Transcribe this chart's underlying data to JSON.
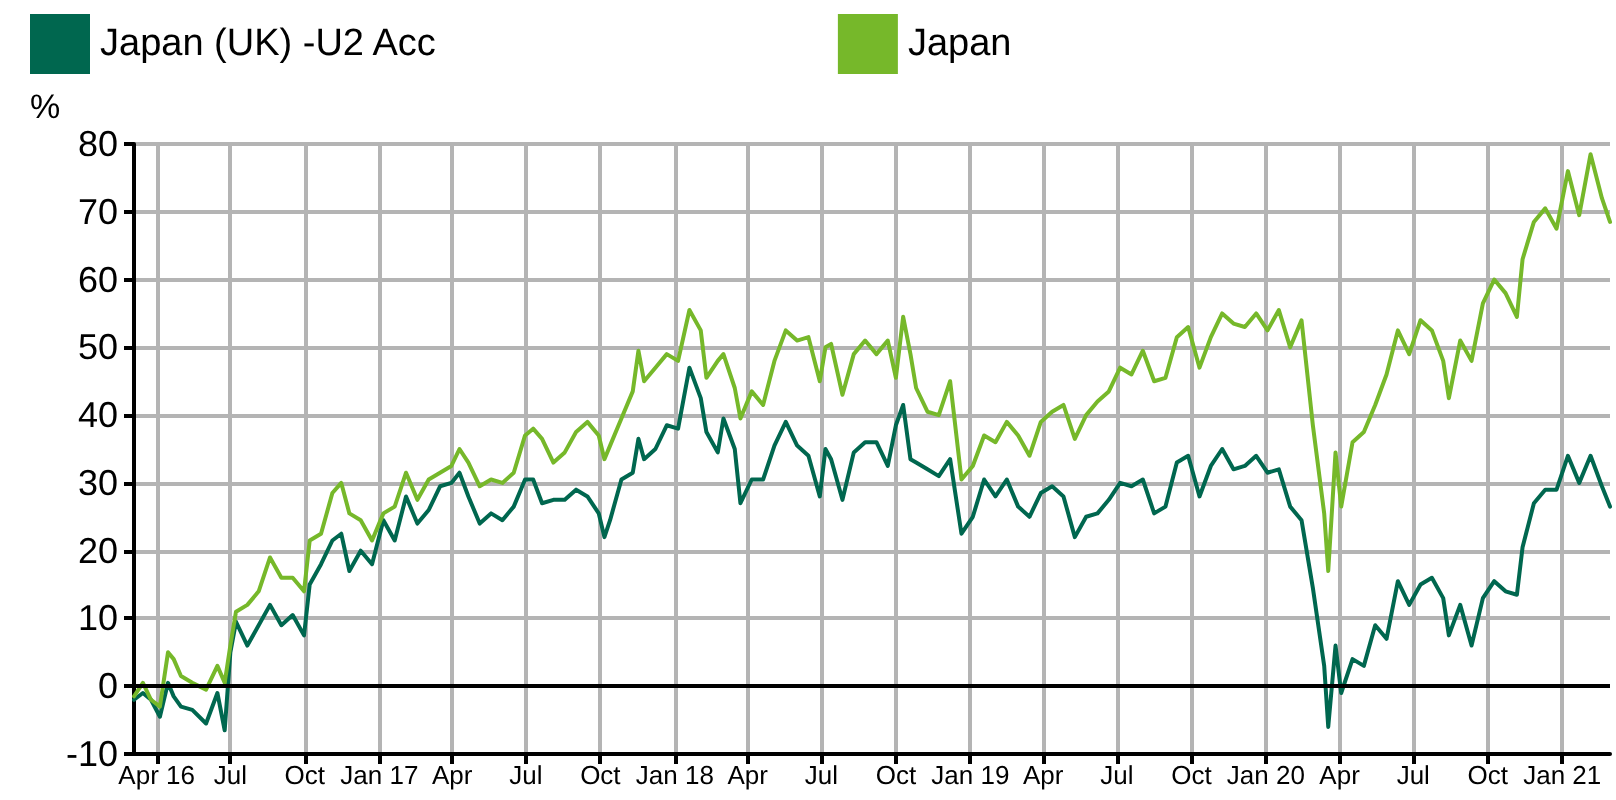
{
  "chart_data": {
    "type": "line",
    "ylabel": "%",
    "legend": "top",
    "grid": true,
    "marker": "none",
    "line_style": "solid",
    "ylim": [
      -10,
      80
    ],
    "yticks": [
      -10,
      0,
      10,
      20,
      30,
      40,
      50,
      60,
      70,
      80
    ],
    "xlim": [
      "2016-03-04",
      "2021-03-01"
    ],
    "xticks": [
      {
        "value": "2016-04-01",
        "label": "Apr 16"
      },
      {
        "value": "2016-07-01",
        "label": "Jul"
      },
      {
        "value": "2016-10-01",
        "label": "Oct"
      },
      {
        "value": "2017-01-01",
        "label": "Jan 17"
      },
      {
        "value": "2017-04-01",
        "label": "Apr"
      },
      {
        "value": "2017-07-01",
        "label": "Jul"
      },
      {
        "value": "2017-10-01",
        "label": "Oct"
      },
      {
        "value": "2018-01-01",
        "label": "Jan 18"
      },
      {
        "value": "2018-04-01",
        "label": "Apr"
      },
      {
        "value": "2018-07-01",
        "label": "Jul"
      },
      {
        "value": "2018-10-01",
        "label": "Oct"
      },
      {
        "value": "2019-01-01",
        "label": "Jan 19"
      },
      {
        "value": "2019-04-01",
        "label": "Apr"
      },
      {
        "value": "2019-07-01",
        "label": "Jul"
      },
      {
        "value": "2019-10-01",
        "label": "Oct"
      },
      {
        "value": "2020-01-01",
        "label": "Jan 20"
      },
      {
        "value": "2020-04-01",
        "label": "Apr"
      },
      {
        "value": "2020-07-01",
        "label": "Jul"
      },
      {
        "value": "2020-10-01",
        "label": "Oct"
      },
      {
        "value": "2021-01-01",
        "label": "Jan 21"
      }
    ],
    "ref_lines": [
      {
        "axis": "y",
        "value": 0,
        "color": "#000000"
      }
    ],
    "x": [
      "2016-03-04",
      "2016-03-15",
      "2016-03-25",
      "2016-04-05",
      "2016-04-15",
      "2016-04-22",
      "2016-05-01",
      "2016-05-15",
      "2016-06-01",
      "2016-06-15",
      "2016-06-24",
      "2016-07-01",
      "2016-07-08",
      "2016-07-22",
      "2016-08-05",
      "2016-08-19",
      "2016-09-02",
      "2016-09-16",
      "2016-09-30",
      "2016-10-07",
      "2016-10-21",
      "2016-11-04",
      "2016-11-15",
      "2016-11-25",
      "2016-12-09",
      "2016-12-23",
      "2017-01-06",
      "2017-01-20",
      "2017-02-03",
      "2017-02-17",
      "2017-03-03",
      "2017-03-17",
      "2017-03-31",
      "2017-04-10",
      "2017-04-21",
      "2017-05-05",
      "2017-05-19",
      "2017-06-02",
      "2017-06-16",
      "2017-06-30",
      "2017-07-10",
      "2017-07-21",
      "2017-08-04",
      "2017-08-18",
      "2017-09-01",
      "2017-09-15",
      "2017-09-29",
      "2017-10-06",
      "2017-10-13",
      "2017-10-27",
      "2017-11-10",
      "2017-11-17",
      "2017-11-24",
      "2017-12-08",
      "2017-12-22",
      "2018-01-05",
      "2018-01-19",
      "2018-02-02",
      "2018-02-09",
      "2018-02-23",
      "2018-03-02",
      "2018-03-16",
      "2018-03-23",
      "2018-04-06",
      "2018-04-20",
      "2018-05-04",
      "2018-05-18",
      "2018-06-01",
      "2018-06-15",
      "2018-06-29",
      "2018-07-06",
      "2018-07-13",
      "2018-07-27",
      "2018-08-10",
      "2018-08-24",
      "2018-09-07",
      "2018-09-21",
      "2018-10-01",
      "2018-10-10",
      "2018-10-19",
      "2018-10-26",
      "2018-11-09",
      "2018-11-23",
      "2018-12-07",
      "2018-12-21",
      "2019-01-04",
      "2019-01-18",
      "2019-02-01",
      "2019-02-15",
      "2019-03-01",
      "2019-03-15",
      "2019-03-29",
      "2019-04-12",
      "2019-04-26",
      "2019-05-10",
      "2019-05-24",
      "2019-06-07",
      "2019-06-21",
      "2019-07-05",
      "2019-07-19",
      "2019-08-02",
      "2019-08-16",
      "2019-08-30",
      "2019-09-13",
      "2019-09-27",
      "2019-10-11",
      "2019-10-25",
      "2019-11-08",
      "2019-11-22",
      "2019-12-06",
      "2019-12-20",
      "2020-01-03",
      "2020-01-17",
      "2020-01-31",
      "2020-02-14",
      "2020-02-28",
      "2020-03-13",
      "2020-03-18",
      "2020-03-27",
      "2020-04-03",
      "2020-04-17",
      "2020-05-01",
      "2020-05-15",
      "2020-05-29",
      "2020-06-12",
      "2020-06-26",
      "2020-07-10",
      "2020-07-24",
      "2020-08-07",
      "2020-08-14",
      "2020-08-28",
      "2020-09-11",
      "2020-09-25",
      "2020-10-09",
      "2020-10-23",
      "2020-11-06",
      "2020-11-13",
      "2020-11-27",
      "2020-12-11",
      "2020-12-25",
      "2021-01-08",
      "2021-01-22",
      "2021-02-05",
      "2021-02-19",
      "2021-03-01"
    ],
    "series": [
      {
        "name": "Japan (UK) -U2 Acc",
        "color": "#00674f",
        "values": [
          -2,
          -1,
          -2,
          -4.5,
          0.5,
          -1.5,
          -3,
          -3.5,
          -5.5,
          -1,
          -6.5,
          5,
          9.5,
          6,
          9,
          12,
          9,
          10.5,
          7.5,
          15,
          18,
          21.5,
          22.5,
          17,
          20,
          18,
          24.5,
          21.5,
          28,
          24,
          26,
          29.5,
          30,
          31.5,
          28,
          24,
          25.5,
          24.5,
          26.5,
          30.5,
          30.5,
          27,
          27.5,
          27.5,
          29,
          28,
          25.5,
          22,
          24.5,
          30.5,
          31.5,
          36.5,
          33.5,
          35,
          38.5,
          38,
          47,
          42.5,
          37.5,
          34.5,
          39.5,
          35,
          27,
          30.5,
          30.5,
          35.5,
          39,
          35.5,
          34,
          28,
          35,
          33.5,
          27.5,
          34.5,
          36,
          36,
          32.5,
          38.5,
          41.5,
          33.5,
          33,
          32,
          31,
          33.5,
          22.5,
          25,
          30.5,
          28,
          30.5,
          26.5,
          25,
          28.5,
          29.5,
          28,
          22,
          25,
          25.5,
          27.5,
          30,
          29.5,
          30.5,
          25.5,
          26.5,
          33,
          34,
          28,
          32.5,
          35,
          32,
          32.5,
          34,
          31.5,
          32,
          26.5,
          24.5,
          14.5,
          3,
          -6,
          6,
          -1,
          4,
          3,
          9,
          7,
          15.5,
          12,
          15,
          16,
          13,
          7.5,
          12,
          6,
          13,
          15.5,
          14,
          13.5,
          20.5,
          27,
          29,
          29,
          34,
          30,
          34,
          29.5,
          26.5
        ]
      },
      {
        "name": "Japan",
        "color": "#76b82a",
        "values": [
          -1.5,
          0.5,
          -2,
          -3,
          5,
          4,
          1.5,
          0.5,
          -0.5,
          3,
          0.5,
          6,
          11,
          12,
          14,
          19,
          16,
          16,
          14,
          21.5,
          22.5,
          28.5,
          30,
          25.5,
          24.5,
          21.5,
          25.5,
          26.5,
          31.5,
          27.5,
          30.5,
          31.5,
          32.5,
          35,
          33,
          29.5,
          30.5,
          30,
          31.5,
          37,
          38,
          36.5,
          33,
          34.5,
          37.5,
          39,
          37,
          33.5,
          35.5,
          39.5,
          43.5,
          49.5,
          45,
          47,
          49,
          48,
          55.5,
          52.5,
          45.5,
          48,
          49,
          44,
          39.5,
          43.5,
          41.5,
          48,
          52.5,
          51,
          51.5,
          45,
          50,
          50.5,
          43,
          49,
          51,
          49,
          51,
          45.5,
          54.5,
          49,
          44,
          40.5,
          40,
          45,
          30.5,
          32.5,
          37,
          36,
          39,
          37,
          34,
          39,
          40.5,
          41.5,
          36.5,
          40,
          42,
          43.5,
          47,
          46,
          49.5,
          45,
          45.5,
          51.5,
          53,
          47,
          51.5,
          55,
          53.5,
          53,
          55,
          52.5,
          55.5,
          50,
          54,
          38.5,
          25.5,
          17,
          34.5,
          26.5,
          36,
          37.5,
          41.5,
          46,
          52.5,
          49,
          54,
          52.5,
          48,
          42.5,
          51,
          48,
          56.5,
          60,
          58,
          54.5,
          63,
          68.5,
          70.5,
          67.5,
          76,
          69.5,
          78.5,
          72,
          68.5
        ]
      }
    ]
  }
}
